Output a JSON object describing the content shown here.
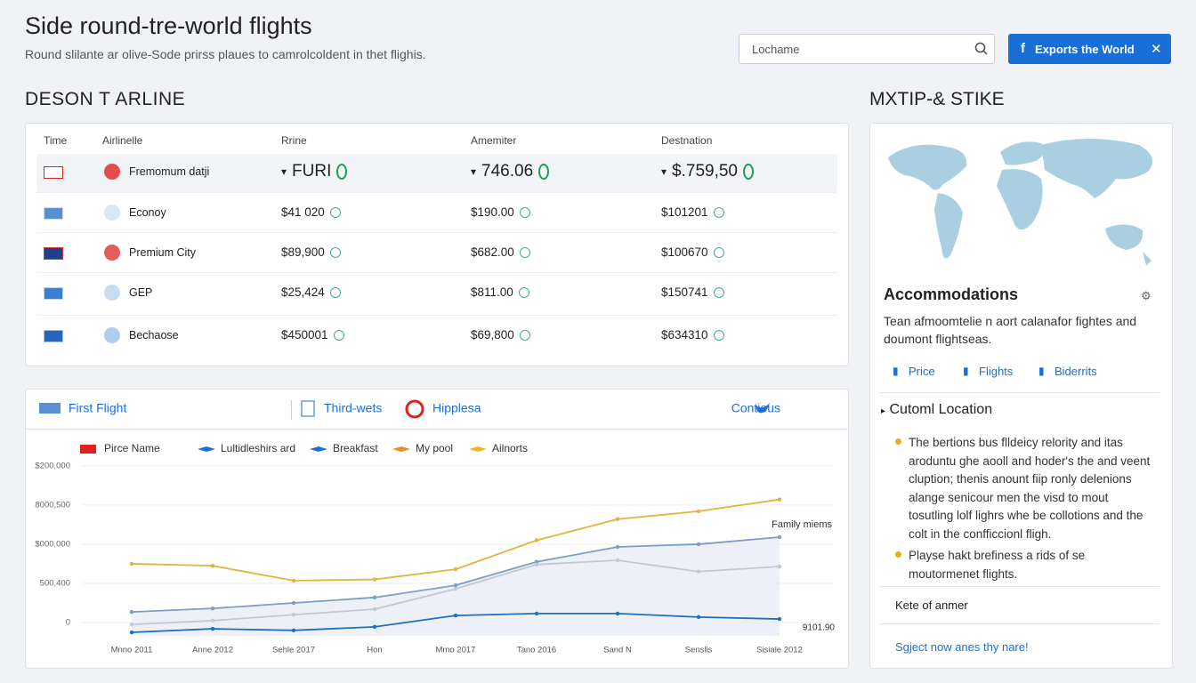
{
  "header": {
    "title": "Side round-tre-world flights",
    "subtitle": "Round slilante ar olive-Sode prirss plaues to camrolcoldent in thet flighis.",
    "search_placeholder": "Lochame",
    "button": "Exports the World"
  },
  "table": {
    "title": "DESON T ARLINE",
    "columns": [
      "Time",
      "Airlinelle",
      "Rrine",
      "Amemiter",
      "Destnation"
    ],
    "rows": [
      [
        "Fremomum datji",
        "FURI",
        "746.06",
        "$.759,50"
      ],
      [
        "Econoy",
        "$41 020",
        "$190.00",
        "$101201"
      ],
      [
        "Premium City",
        "$89,900",
        "$682.00",
        "$100670"
      ],
      [
        "GEP",
        "$25,424",
        "$811.00",
        "$150741"
      ],
      [
        "Bechaose",
        "$450001",
        "$69,800",
        "$634310"
      ]
    ]
  },
  "chart_data": {
    "type": "line",
    "tabs": [
      "First Flight",
      "Third-wets",
      "Hipplesa",
      "Contious"
    ],
    "legend": [
      {
        "name": "Pirce Name",
        "color": "#e0201c"
      },
      {
        "name": "Lultidleshirs ard",
        "color": "#1a6fd6"
      },
      {
        "name": "Breakfast",
        "color": "#1a6fd6"
      },
      {
        "name": "My pool",
        "color": "#f08a24"
      },
      {
        "name": "Ailnorts",
        "color": "#f2b71e"
      }
    ],
    "categories": [
      "Mnno 2011",
      "Anne 2012",
      "Sehle 2017",
      "Hon",
      "Mmo 2017",
      "Tano 2016",
      "Sand N",
      "Senslis",
      "Sisiale 2012"
    ],
    "series": [
      {
        "color": "#e3b33c",
        "values": [
          1.5,
          1.45,
          1.07,
          1.1,
          1.36,
          2.1,
          2.64,
          2.84,
          3.14
        ]
      },
      {
        "color": "#1f6fc0",
        "values": [
          -0.25,
          -0.16,
          -0.2,
          -0.11,
          0.18,
          0.23,
          0.23,
          0.14,
          0.09
        ]
      },
      {
        "color": "#7f9cc4",
        "values": [
          0.27,
          0.36,
          0.5,
          0.64,
          0.95,
          1.55,
          1.93,
          2.0,
          2.18
        ]
      },
      {
        "color": "#c2c8d4",
        "values": [
          -0.05,
          0.05,
          0.2,
          0.34,
          0.86,
          1.48,
          1.59,
          1.3,
          1.43
        ]
      }
    ],
    "ylim": [
      -0.34,
      4.2
    ],
    "yticks": [
      {
        "value": 0,
        "label": "0"
      },
      {
        "value": 1,
        "label": "500,400"
      },
      {
        "value": 2,
        "label": "$000,000"
      },
      {
        "value": 3,
        "label": "8000,500"
      },
      {
        "value": 4,
        "label": "$200,000"
      }
    ],
    "annotations": [
      "Family miems",
      "9101.90"
    ]
  },
  "sidebar": {
    "title": "MXTIP-& STIKE",
    "heading": "Accommodations",
    "description": "Tean afmoomtelie n aort calanafor fightes and doumont flightseas.",
    "links": [
      "Price",
      "Flights",
      "Biderrits"
    ],
    "section": "Cutoml Location",
    "bullets": [
      "The bertions bus flldeicy relority and itas aroduntu ghe aooll and hoder's the and veent cluption; thenis anount fiip ronly delenions alange senicour men the visd to mout tosutling lolf lighrs whe be collotions and the colt in the confficcionl fligh.",
      "Playse hakt brefiness a rids of se moutormenet flights."
    ],
    "footer_label": "Kete of anmer",
    "cta": "Sgject now anes thy nare!"
  }
}
